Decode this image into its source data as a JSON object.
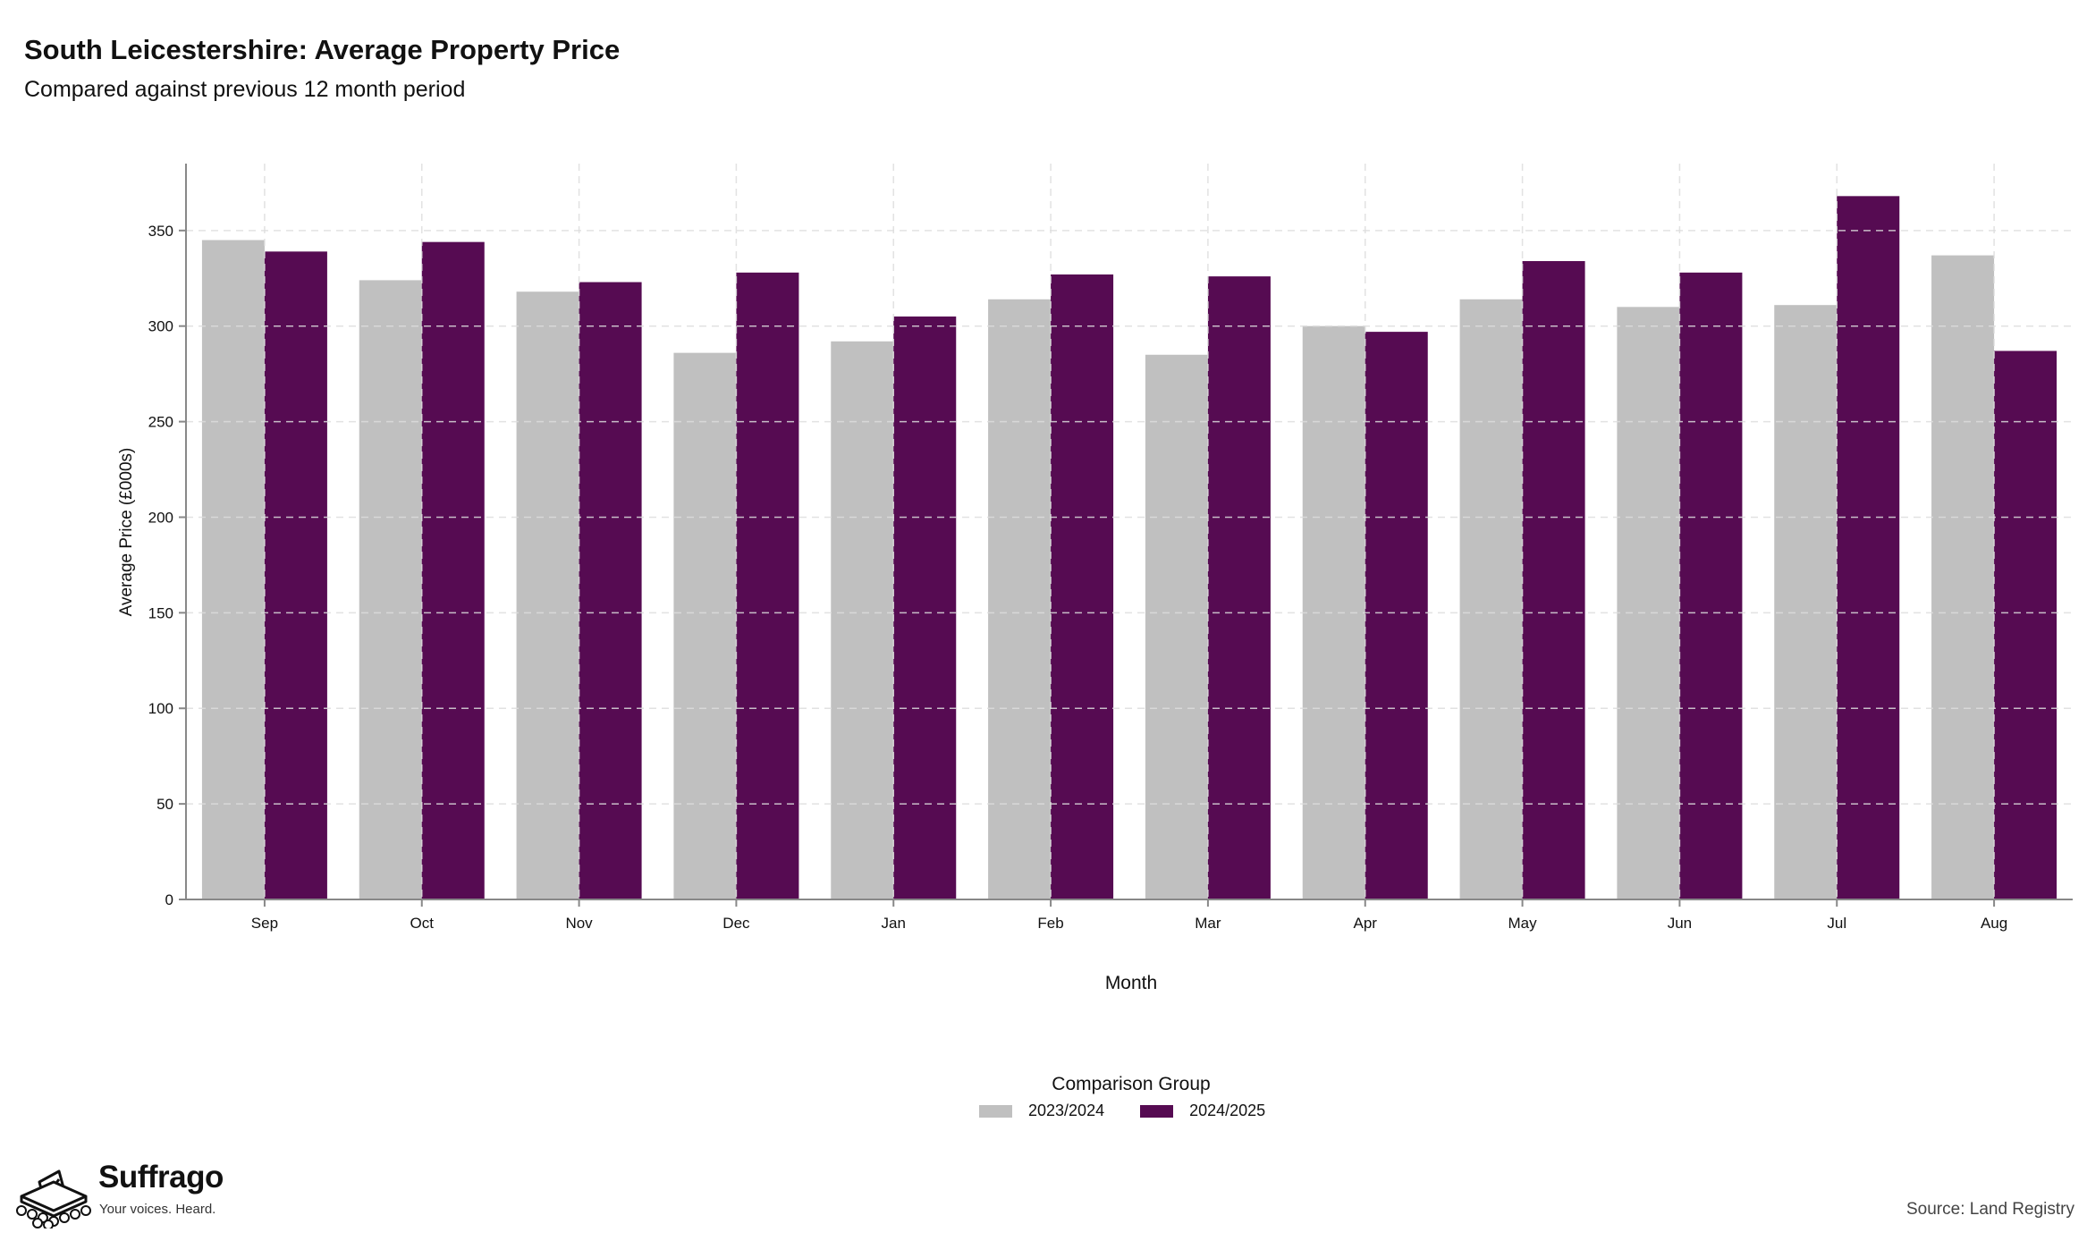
{
  "header": {
    "title": "South Leicestershire: Average Property Price",
    "subtitle": "Compared against previous 12 month period"
  },
  "legend": {
    "title": "Comparison Group"
  },
  "footer": {
    "brand": "Suffrago",
    "tagline": "Your voices. Heard.",
    "source": "Source: Land Registry"
  },
  "colors": {
    "series_2023": "#c0c0c0",
    "series_2024": "#560b52",
    "grid": "#dddddd",
    "axis": "#888888"
  },
  "chart_data": {
    "type": "bar",
    "title": "South Leicestershire: Average Property Price",
    "subtitle": "Compared against previous 12 month period",
    "xlabel": "Month",
    "ylabel": "Average Price (£000s)",
    "ylim": [
      0,
      385
    ],
    "yticks": [
      0,
      50,
      100,
      150,
      200,
      250,
      300,
      350
    ],
    "grid": true,
    "legend_position": "bottom",
    "categories": [
      "Sep",
      "Oct",
      "Nov",
      "Dec",
      "Jan",
      "Feb",
      "Mar",
      "Apr",
      "May",
      "Jun",
      "Jul",
      "Aug"
    ],
    "series": [
      {
        "name": "2023/2024",
        "values": [
          345,
          324,
          318,
          286,
          292,
          314,
          285,
          300,
          314,
          310,
          311,
          337
        ]
      },
      {
        "name": "2024/2025",
        "values": [
          339,
          344,
          323,
          328,
          305,
          327,
          326,
          297,
          334,
          328,
          368,
          287
        ]
      }
    ]
  }
}
